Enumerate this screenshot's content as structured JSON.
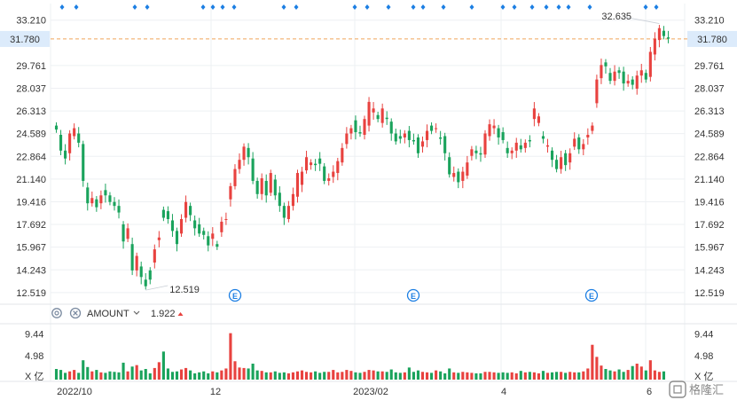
{
  "chart_data": {
    "type": "candlestick",
    "price_axis": {
      "ticks": [
        "33.210",
        "29.761",
        "28.037",
        "26.313",
        "24.589",
        "22.864",
        "21.140",
        "19.416",
        "17.692",
        "15.967",
        "14.243",
        "12.519"
      ],
      "range": [
        11.7,
        34.2
      ]
    },
    "current_price": "31.780",
    "high_label": "32.635",
    "low_label": "12.519",
    "x_labels": [
      "2022/10",
      "12",
      "2023/02",
      "4",
      "6"
    ],
    "candles": [
      [
        25.2,
        24.9
      ],
      [
        24.5,
        23.3
      ],
      [
        23.3,
        22.7
      ],
      [
        23.1,
        24.6
      ],
      [
        24.4,
        25.0
      ],
      [
        24.6,
        23.9
      ],
      [
        23.8,
        21.0
      ],
      [
        20.5,
        19.3
      ],
      [
        19.3,
        19.7
      ],
      [
        19.6,
        19.0
      ],
      [
        19.3,
        19.9
      ],
      [
        20.3,
        19.9
      ],
      [
        19.9,
        19.4
      ],
      [
        19.4,
        19.1
      ],
      [
        19.1,
        18.6
      ],
      [
        17.7,
        16.4
      ],
      [
        16.6,
        17.4
      ],
      [
        16.2,
        14.2
      ],
      [
        14.2,
        15.3
      ],
      [
        14.5,
        13.7
      ],
      [
        13.5,
        13.0
      ],
      [
        14.2,
        13.5
      ],
      [
        14.8,
        15.8
      ],
      [
        16.5,
        16.7
      ],
      [
        18.8,
        18.2
      ],
      [
        18.7,
        18.1
      ],
      [
        18.0,
        17.2
      ],
      [
        17.2,
        16.2
      ],
      [
        17.0,
        18.1
      ],
      [
        18.2,
        19.4
      ],
      [
        19.1,
        18.4
      ],
      [
        18.0,
        17.4
      ],
      [
        17.7,
        17.0
      ],
      [
        17.2,
        16.9
      ],
      [
        16.8,
        16.1
      ],
      [
        16.6,
        17.0
      ],
      [
        16.2,
        16.0
      ],
      [
        17.1,
        17.9
      ],
      [
        18.1,
        18.1
      ],
      [
        19.6,
        20.6
      ],
      [
        20.6,
        21.9
      ],
      [
        21.9,
        22.6
      ],
      [
        22.6,
        23.6
      ],
      [
        23.5,
        22.8
      ],
      [
        22.7,
        21.0
      ],
      [
        21.0,
        20.0
      ],
      [
        20.0,
        21.2
      ],
      [
        21.0,
        19.9
      ],
      [
        20.1,
        21.6
      ],
      [
        21.1,
        19.9
      ],
      [
        20.1,
        19.1
      ],
      [
        19.1,
        18.2
      ],
      [
        18.1,
        19.1
      ],
      [
        19.1,
        20.0
      ],
      [
        19.8,
        21.6
      ],
      [
        20.7,
        21.7
      ],
      [
        21.8,
        22.8
      ],
      [
        22.2,
        22.4
      ],
      [
        22.3,
        22.2
      ],
      [
        22.7,
        22.3
      ],
      [
        22.1,
        21.0
      ],
      [
        21.0,
        21.2
      ],
      [
        21.3,
        21.7
      ],
      [
        21.6,
        22.5
      ],
      [
        22.4,
        23.5
      ],
      [
        23.8,
        24.6
      ],
      [
        24.6,
        25.0
      ],
      [
        25.6,
        24.7
      ],
      [
        24.7,
        24.6
      ],
      [
        24.5,
        25.7
      ],
      [
        25.2,
        27.0
      ],
      [
        26.2,
        26.5
      ],
      [
        26.0,
        25.7
      ],
      [
        25.4,
        26.5
      ],
      [
        25.8,
        25.7
      ],
      [
        25.5,
        24.6
      ],
      [
        24.6,
        24.0
      ],
      [
        24.4,
        24.2
      ],
      [
        24.3,
        24.6
      ],
      [
        24.8,
        24.1
      ],
      [
        24.1,
        24.0
      ],
      [
        24.3,
        23.1
      ],
      [
        23.6,
        24.0
      ],
      [
        24.1,
        24.8
      ],
      [
        25.2,
        24.8
      ],
      [
        25.0,
        25.0
      ],
      [
        24.3,
        24.2
      ],
      [
        24.4,
        23.1
      ],
      [
        22.8,
        21.5
      ],
      [
        21.3,
        21.6
      ],
      [
        21.7,
        20.9
      ],
      [
        21.0,
        21.7
      ],
      [
        21.4,
        22.4
      ],
      [
        22.9,
        23.4
      ],
      [
        23.3,
        23.1
      ],
      [
        23.1,
        23.0
      ],
      [
        23.0,
        24.6
      ],
      [
        24.4,
        25.3
      ],
      [
        25.0,
        25.2
      ],
      [
        25.0,
        24.3
      ],
      [
        24.7,
        24.1
      ],
      [
        23.5,
        23.1
      ],
      [
        23.1,
        23.3
      ],
      [
        23.3,
        23.9
      ],
      [
        23.7,
        23.4
      ],
      [
        23.5,
        23.9
      ],
      [
        24.1,
        24.0
      ],
      [
        25.7,
        26.5
      ],
      [
        25.4,
        25.9
      ],
      [
        24.4,
        24.2
      ],
      [
        23.6,
        23.7
      ],
      [
        23.3,
        22.6
      ],
      [
        22.6,
        21.9
      ],
      [
        21.9,
        22.8
      ],
      [
        23.1,
        22.2
      ],
      [
        22.4,
        23.1
      ],
      [
        23.6,
        24.2
      ],
      [
        24.3,
        23.4
      ],
      [
        23.4,
        23.8
      ],
      [
        24.3,
        24.5
      ],
      [
        24.8,
        25.2
      ],
      [
        26.9,
        28.7
      ],
      [
        28.8,
        29.8
      ],
      [
        30.0,
        29.7
      ],
      [
        29.2,
        28.6
      ],
      [
        28.6,
        29.3
      ],
      [
        29.4,
        29.2
      ],
      [
        29.3,
        28.4
      ],
      [
        28.4,
        28.6
      ],
      [
        28.7,
        28.3
      ],
      [
        28.0,
        29.0
      ],
      [
        29.0,
        29.4
      ],
      [
        29.2,
        28.7
      ],
      [
        28.9,
        30.8
      ],
      [
        30.6,
        31.8
      ],
      [
        31.7,
        32.6
      ],
      [
        32.4,
        32.0
      ],
      [
        31.9,
        31.8
      ]
    ],
    "volume_axis": {
      "ticks": [
        "9.44",
        "4.98"
      ],
      "unit": "X 亿",
      "max": 11.0
    },
    "volumes": [
      2.2,
      2.0,
      1.4,
      1.7,
      2.0,
      1.4,
      4.0,
      2.6,
      1.7,
      2.0,
      1.5,
      1.4,
      1.7,
      1.6,
      1.5,
      3.5,
      1.7,
      2.7,
      3.0,
      1.9,
      2.2,
      1.3,
      2.4,
      3.6,
      5.8,
      2.3,
      1.6,
      1.7,
      2.1,
      2.4,
      1.9,
      1.3,
      1.5,
      1.7,
      1.3,
      1.7,
      1.5,
      1.9,
      2.3,
      9.6,
      3.8,
      2.5,
      2.4,
      2.3,
      3.3,
      1.9,
      1.8,
      1.5,
      1.5,
      1.7,
      1.4,
      1.5,
      1.3,
      1.5,
      1.7,
      1.9,
      1.6,
      1.5,
      1.7,
      1.4,
      1.6,
      1.6,
      2.0,
      1.5,
      1.6,
      2.0,
      1.8,
      1.5,
      1.4,
      1.6,
      2.0,
      1.9,
      1.7,
      1.7,
      1.6,
      2.1,
      1.5,
      1.4,
      1.5,
      2.5,
      1.6,
      1.9,
      1.6,
      1.5,
      1.4,
      1.9,
      1.7,
      1.3,
      2.3,
      1.5,
      1.4,
      1.6,
      1.5,
      1.4,
      1.3,
      1.3,
      1.6,
      1.6,
      1.5,
      1.4,
      1.5,
      1.4,
      1.5,
      1.3,
      1.8,
      1.5,
      1.6,
      1.5,
      1.3,
      1.8,
      1.4,
      1.5,
      1.6,
      1.6,
      1.4,
      1.6,
      1.5,
      1.5,
      1.7,
      2.3,
      7.2,
      4.7,
      2.9,
      2.2,
      1.9,
      1.7,
      2.1,
      1.6,
      2.0,
      2.8,
      3.3,
      2.7,
      1.9,
      4.0,
      1.9,
      1.6,
      1.7
    ],
    "indicator": {
      "name": "AMOUNT",
      "value": "1.922"
    },
    "grid": true
  },
  "toolbar": {
    "settings_icon": "gear-icon",
    "close_icon": "close-icon",
    "dropdown_icon": "chevron-down-icon"
  },
  "watermark": "格隆汇",
  "colors": {
    "up": "#e8423f",
    "down": "#1aa35c",
    "accent": "#1d7fe3",
    "price_line": "#f0a55a"
  }
}
